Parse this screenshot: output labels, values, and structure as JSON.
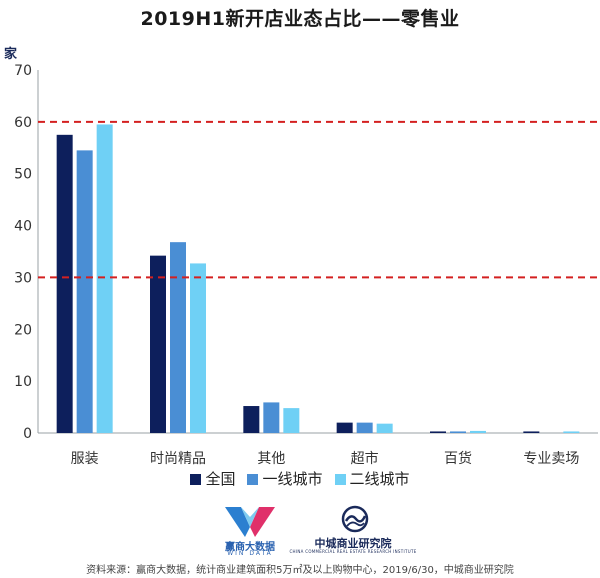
{
  "chart_data": {
    "type": "bar",
    "title": "2019H1新开店业态占比——零售业",
    "ylabel": "家",
    "ylim": [
      0,
      70
    ],
    "yticks": [
      0,
      10,
      20,
      30,
      40,
      50,
      60,
      70
    ],
    "categories": [
      "服装",
      "时尚精品",
      "其他",
      "超市",
      "百货",
      "专业卖场"
    ],
    "series": [
      {
        "name": "全国",
        "color": "#0d1f5c",
        "values": [
          57.5,
          34.2,
          5.2,
          2.0,
          0.3,
          0.3
        ]
      },
      {
        "name": "一线城市",
        "color": "#4a8ed4",
        "values": [
          54.5,
          36.8,
          5.9,
          2.0,
          0.3,
          0.0
        ]
      },
      {
        "name": "二线城市",
        "color": "#6fd0f5",
        "values": [
          59.5,
          32.7,
          4.8,
          1.8,
          0.4,
          0.3
        ]
      }
    ],
    "reference_lines": [
      {
        "value": 60,
        "color": "#d42020",
        "style": "dashed"
      },
      {
        "value": 30,
        "color": "#d42020",
        "style": "dashed"
      }
    ],
    "grid": false,
    "legend_position": "bottom"
  },
  "logos": {
    "windata_name": "赢商大数据",
    "windata_en": "WIN DATA",
    "zhongcheng_name": "中城商业研究院",
    "zhongcheng_en": "CHINA COMMERCIAL REAL ESTATE RESEARCH INSTITUTE"
  },
  "source_text": "资料来源：赢商大数据，统计商业建筑面积5万㎡及以上购物中心，2019/6/30，中城商业研究院"
}
